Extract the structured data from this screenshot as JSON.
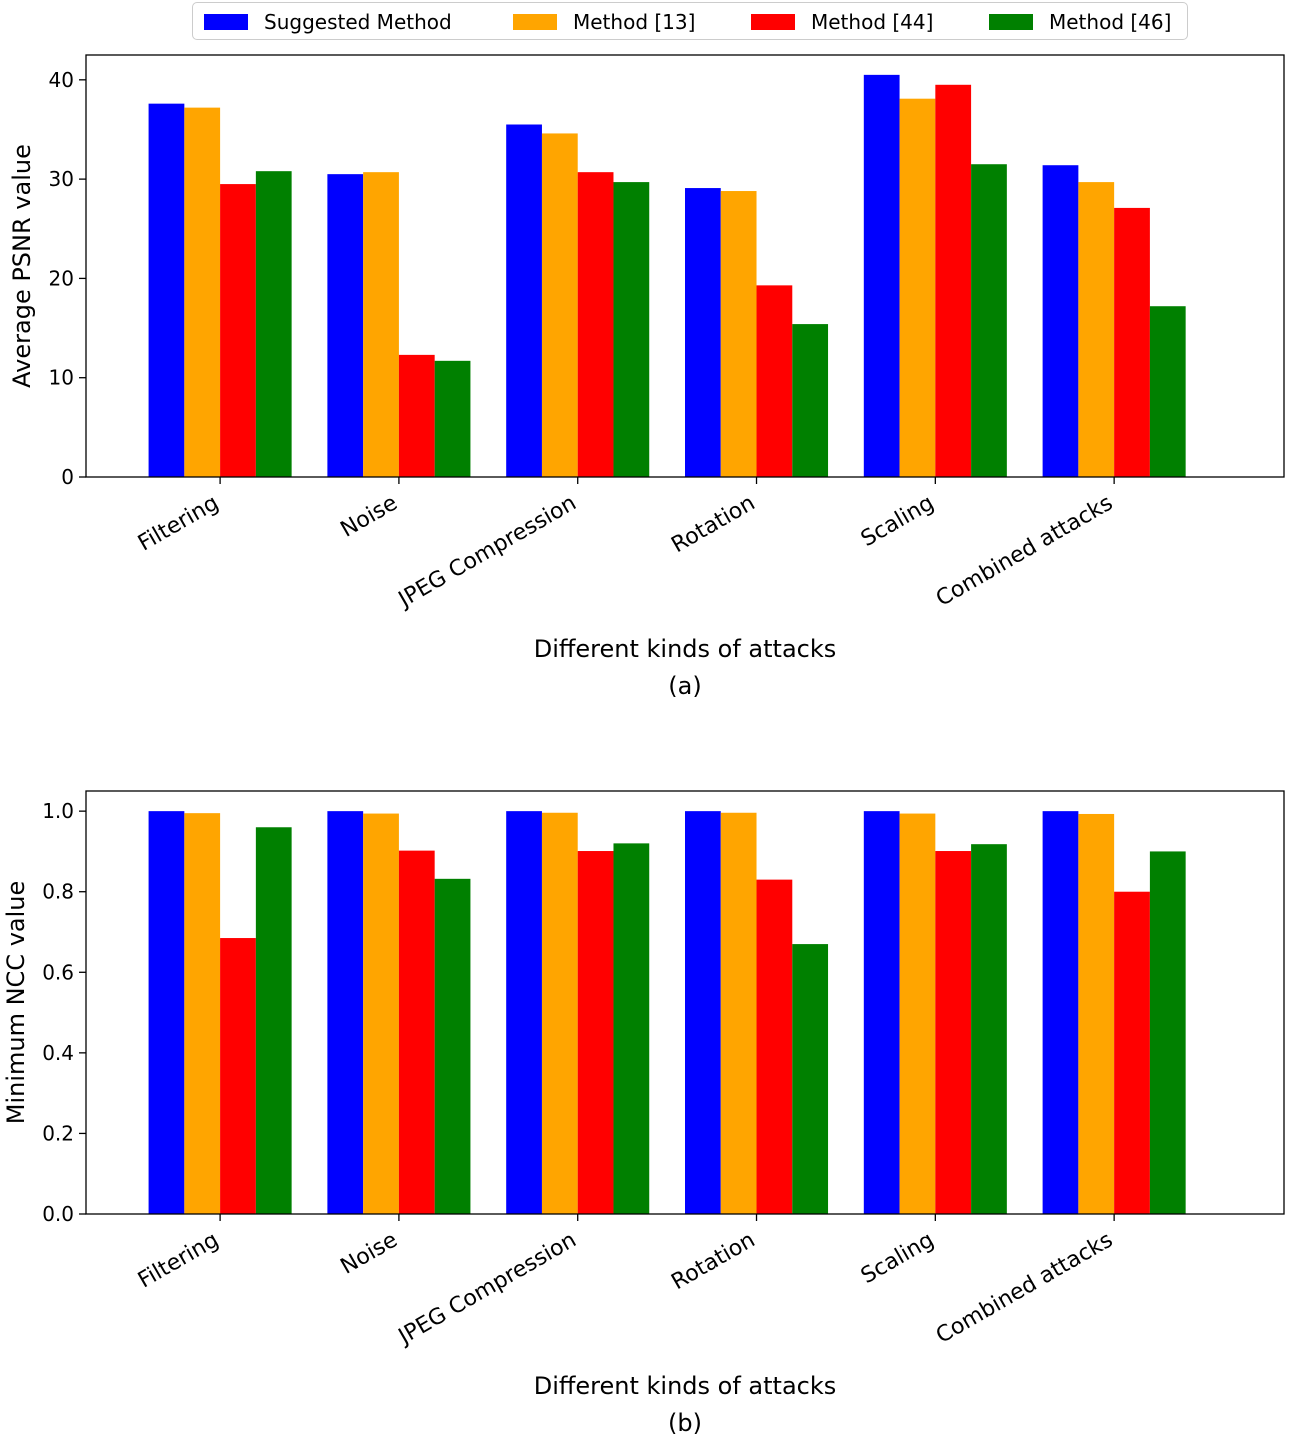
{
  "legend_colors": {
    "Suggested Method": "#0000ff",
    "Method [13]": "#ffa500",
    "Method [44]": "#ff0000",
    "Method [46]": "#008000"
  },
  "chart_data": [
    {
      "type": "bar",
      "panel_label": "(a)",
      "xlabel": "Different kinds of attacks",
      "ylabel": "Average PSNR value",
      "categories": [
        "Filtering",
        "Noise",
        "JPEG Compression",
        "Rotation",
        "Scaling",
        "Combined attacks"
      ],
      "ylim": [
        0,
        42.5
      ],
      "yticks": [
        0,
        10,
        20,
        30,
        40
      ],
      "ytick_labels": [
        "0",
        "10",
        "20",
        "30",
        "40"
      ],
      "legend_position": "top-center",
      "series": [
        {
          "name": "Suggested Method",
          "color": "#0000ff",
          "values": [
            37.6,
            30.5,
            35.5,
            29.1,
            40.5,
            31.4
          ]
        },
        {
          "name": "Method [13]",
          "color": "#ffa500",
          "values": [
            37.2,
            30.7,
            34.6,
            28.8,
            38.1,
            29.7
          ]
        },
        {
          "name": "Method [44]",
          "color": "#ff0000",
          "values": [
            29.5,
            12.3,
            30.7,
            19.3,
            39.5,
            27.1
          ]
        },
        {
          "name": "Method [46]",
          "color": "#008000",
          "values": [
            30.8,
            11.7,
            29.7,
            15.4,
            31.5,
            17.2
          ]
        }
      ]
    },
    {
      "type": "bar",
      "panel_label": "(b)",
      "xlabel": "Different kinds of attacks",
      "ylabel": "Minimum NCC value",
      "categories": [
        "Filtering",
        "Noise",
        "JPEG Compression",
        "Rotation",
        "Scaling",
        "Combined attacks"
      ],
      "ylim": [
        0,
        1.05
      ],
      "yticks": [
        0,
        0.2,
        0.4,
        0.6,
        0.8,
        1.0
      ],
      "ytick_labels": [
        "0.0",
        "0.2",
        "0.4",
        "0.6",
        "0.8",
        "1.0"
      ],
      "series": [
        {
          "name": "Suggested Method",
          "color": "#0000ff",
          "values": [
            1.0,
            1.0,
            1.0,
            1.0,
            1.0,
            1.0
          ]
        },
        {
          "name": "Method [13]",
          "color": "#ffa500",
          "values": [
            0.995,
            0.994,
            0.996,
            0.996,
            0.994,
            0.993
          ]
        },
        {
          "name": "Method [44]",
          "color": "#ff0000",
          "values": [
            0.685,
            0.902,
            0.901,
            0.83,
            0.901,
            0.8
          ]
        },
        {
          "name": "Method [46]",
          "color": "#008000",
          "values": [
            0.96,
            0.832,
            0.92,
            0.67,
            0.918,
            0.9
          ]
        }
      ]
    }
  ]
}
